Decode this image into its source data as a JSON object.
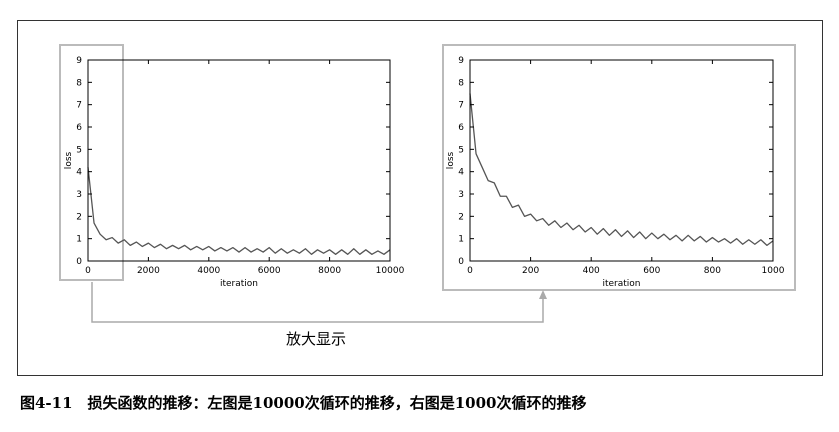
{
  "chart_data": [
    {
      "type": "line",
      "xlabel": "iteration",
      "ylabel": "loss",
      "color": "#555555",
      "xlim": [
        0,
        10000
      ],
      "ylim": [
        0,
        9
      ],
      "xticks": [
        0,
        2000,
        4000,
        6000,
        8000,
        10000
      ],
      "yticks": [
        0,
        1,
        2,
        3,
        4,
        5,
        6,
        7,
        8,
        9
      ],
      "x": [
        0,
        200,
        400,
        600,
        800,
        1000,
        1200,
        1400,
        1600,
        1800,
        2000,
        2200,
        2400,
        2600,
        2800,
        3000,
        3200,
        3400,
        3600,
        3800,
        4000,
        4200,
        4400,
        4600,
        4800,
        5000,
        5200,
        5400,
        5600,
        5800,
        6000,
        6200,
        6400,
        6600,
        6800,
        7000,
        7200,
        7400,
        7600,
        7800,
        8000,
        8200,
        8400,
        8600,
        8800,
        9000,
        9200,
        9400,
        9600,
        9800,
        10000
      ],
      "values": [
        4.2,
        1.7,
        1.2,
        0.95,
        1.05,
        0.8,
        0.95,
        0.7,
        0.85,
        0.65,
        0.8,
        0.6,
        0.75,
        0.55,
        0.7,
        0.55,
        0.7,
        0.5,
        0.65,
        0.5,
        0.65,
        0.45,
        0.6,
        0.45,
        0.6,
        0.4,
        0.6,
        0.4,
        0.55,
        0.4,
        0.6,
        0.35,
        0.55,
        0.35,
        0.5,
        0.35,
        0.55,
        0.3,
        0.5,
        0.35,
        0.5,
        0.3,
        0.5,
        0.3,
        0.55,
        0.3,
        0.5,
        0.3,
        0.45,
        0.3,
        0.5
      ]
    },
    {
      "type": "line",
      "xlabel": "iteration",
      "ylabel": "loss",
      "color": "#555555",
      "xlim": [
        0,
        1000
      ],
      "ylim": [
        0,
        9
      ],
      "xticks": [
        0,
        200,
        400,
        600,
        800,
        1000
      ],
      "yticks": [
        0,
        1,
        2,
        3,
        4,
        5,
        6,
        7,
        8,
        9
      ],
      "x": [
        0,
        20,
        40,
        60,
        80,
        100,
        120,
        140,
        160,
        180,
        200,
        220,
        240,
        260,
        280,
        300,
        320,
        340,
        360,
        380,
        400,
        420,
        440,
        460,
        480,
        500,
        520,
        540,
        560,
        580,
        600,
        620,
        640,
        660,
        680,
        700,
        720,
        740,
        760,
        780,
        800,
        820,
        840,
        860,
        880,
        900,
        920,
        940,
        960,
        980,
        1000
      ],
      "values": [
        7.5,
        4.8,
        4.2,
        3.6,
        3.5,
        2.9,
        2.9,
        2.4,
        2.5,
        2.0,
        2.1,
        1.8,
        1.9,
        1.6,
        1.8,
        1.5,
        1.7,
        1.4,
        1.6,
        1.3,
        1.5,
        1.2,
        1.45,
        1.15,
        1.4,
        1.1,
        1.35,
        1.05,
        1.3,
        1.0,
        1.25,
        1.0,
        1.2,
        0.95,
        1.15,
        0.9,
        1.15,
        0.9,
        1.1,
        0.85,
        1.05,
        0.85,
        1.0,
        0.8,
        1.0,
        0.75,
        0.95,
        0.75,
        0.95,
        0.7,
        0.9
      ]
    }
  ],
  "annotation": "放大显示",
  "caption": "图4-11　损失函数的推移：左图是10000次循环的推移，右图是1000次循环的推移"
}
